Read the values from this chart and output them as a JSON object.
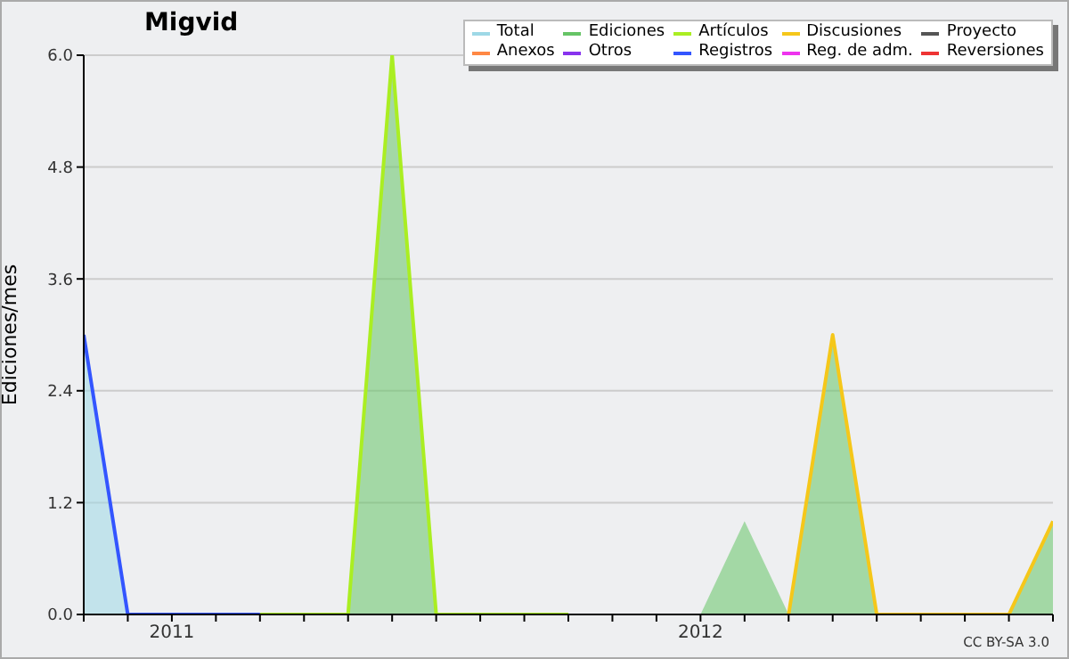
{
  "chart_data": {
    "type": "area",
    "title": "Migvid",
    "ylabel": "Ediciones/mes",
    "x": [
      "2010-11",
      "2010-12",
      "2011-01",
      "2011-02",
      "2011-03",
      "2011-04",
      "2011-05",
      "2011-06",
      "2011-07",
      "2011-08",
      "2011-09",
      "2011-10",
      "2011-11",
      "2011-12",
      "2012-01",
      "2012-02",
      "2012-03",
      "2012-04",
      "2012-05",
      "2012-06",
      "2012-07",
      "2012-08",
      "2012-09"
    ],
    "xlim": [
      "2010-11",
      "2012-09"
    ],
    "xticks": [
      {
        "value": "2010-11",
        "label": null
      },
      {
        "value": "2010-12",
        "label": null
      },
      {
        "value": "2011-01",
        "label": "2011"
      },
      {
        "value": "2011-02",
        "label": null
      },
      {
        "value": "2011-03",
        "label": null
      },
      {
        "value": "2011-04",
        "label": null
      },
      {
        "value": "2011-05",
        "label": null
      },
      {
        "value": "2011-06",
        "label": null
      },
      {
        "value": "2011-07",
        "label": null
      },
      {
        "value": "2011-08",
        "label": null
      },
      {
        "value": "2011-09",
        "label": null
      },
      {
        "value": "2011-10",
        "label": null
      },
      {
        "value": "2011-11",
        "label": null
      },
      {
        "value": "2011-12",
        "label": null
      },
      {
        "value": "2012-01",
        "label": "2012"
      },
      {
        "value": "2012-02",
        "label": null
      },
      {
        "value": "2012-03",
        "label": null
      },
      {
        "value": "2012-04",
        "label": null
      },
      {
        "value": "2012-05",
        "label": null
      },
      {
        "value": "2012-06",
        "label": null
      },
      {
        "value": "2012-07",
        "label": null
      },
      {
        "value": "2012-08",
        "label": null
      },
      {
        "value": "2012-09",
        "label": null
      }
    ],
    "ylim": [
      0,
      6
    ],
    "yticks": [
      {
        "value": 0,
        "label": "0.0"
      },
      {
        "value": 1.2,
        "label": "1.2"
      },
      {
        "value": 2.4,
        "label": "2.4"
      },
      {
        "value": 3.6,
        "label": "3.6"
      },
      {
        "value": 4.8,
        "label": "4.8"
      },
      {
        "value": 6,
        "label": "6.0"
      }
    ],
    "grid": "y",
    "legend": "top right",
    "annotations": [
      "CC BY-SA 3.0"
    ],
    "series": [
      {
        "name": "Total",
        "color": "#9ed8e6",
        "values": [
          3,
          0,
          null,
          null,
          null,
          null,
          null,
          null,
          null,
          null,
          null,
          null,
          null,
          null,
          null,
          null,
          null,
          null,
          null,
          null,
          null,
          null,
          null
        ]
      },
      {
        "name": "Ediciones",
        "color": "#66c466",
        "values": [
          null,
          null,
          null,
          null,
          null,
          null,
          0,
          6,
          0,
          null,
          null,
          null,
          null,
          null,
          0,
          1,
          0,
          3,
          0,
          null,
          null,
          0,
          1
        ]
      },
      {
        "name": "Artículos",
        "type": "line",
        "color": "#aaee22",
        "values": [
          null,
          null,
          null,
          null,
          0,
          0,
          0,
          6,
          0,
          0,
          0,
          0,
          null,
          null,
          null,
          null,
          null,
          null,
          null,
          null,
          null,
          null,
          null
        ]
      },
      {
        "name": "Discusiones",
        "type": "line",
        "color": "#f5c71a",
        "values": [
          null,
          null,
          null,
          null,
          null,
          null,
          null,
          null,
          null,
          null,
          null,
          null,
          null,
          null,
          null,
          null,
          0,
          3,
          0,
          0,
          0,
          0,
          1
        ]
      },
      {
        "name": "Proyecto",
        "type": "line",
        "color": "#555555",
        "values": [
          null,
          null,
          null,
          null,
          null,
          null,
          null,
          null,
          null,
          null,
          null,
          null,
          null,
          null,
          null,
          null,
          null,
          null,
          null,
          null,
          null,
          null,
          null
        ]
      },
      {
        "name": "Anexos",
        "type": "line",
        "color": "#ff8844",
        "values": [
          null,
          null,
          null,
          null,
          null,
          null,
          null,
          null,
          null,
          null,
          null,
          null,
          null,
          null,
          null,
          null,
          null,
          null,
          null,
          null,
          null,
          null,
          null
        ]
      },
      {
        "name": "Otros",
        "type": "line",
        "color": "#8833ee",
        "values": [
          null,
          null,
          null,
          null,
          null,
          null,
          null,
          null,
          null,
          null,
          null,
          null,
          null,
          null,
          null,
          null,
          null,
          null,
          null,
          null,
          null,
          null,
          null
        ]
      },
      {
        "name": "Registros",
        "type": "line",
        "color": "#3355ff",
        "values": [
          3,
          0,
          0,
          0,
          0,
          null,
          null,
          null,
          null,
          null,
          null,
          null,
          null,
          null,
          null,
          null,
          null,
          null,
          null,
          null,
          null,
          null,
          null
        ]
      },
      {
        "name": "Reg. de adm.",
        "type": "line",
        "color": "#ee33ee",
        "values": [
          null,
          null,
          null,
          null,
          null,
          null,
          null,
          null,
          null,
          null,
          null,
          null,
          null,
          null,
          null,
          null,
          null,
          null,
          null,
          null,
          null,
          null,
          null
        ]
      },
      {
        "name": "Reversiones",
        "type": "line",
        "color": "#ee3333",
        "values": [
          null,
          null,
          null,
          null,
          null,
          null,
          null,
          null,
          null,
          null,
          null,
          null,
          null,
          null,
          null,
          null,
          null,
          null,
          null,
          null,
          null,
          null,
          null
        ]
      }
    ]
  }
}
